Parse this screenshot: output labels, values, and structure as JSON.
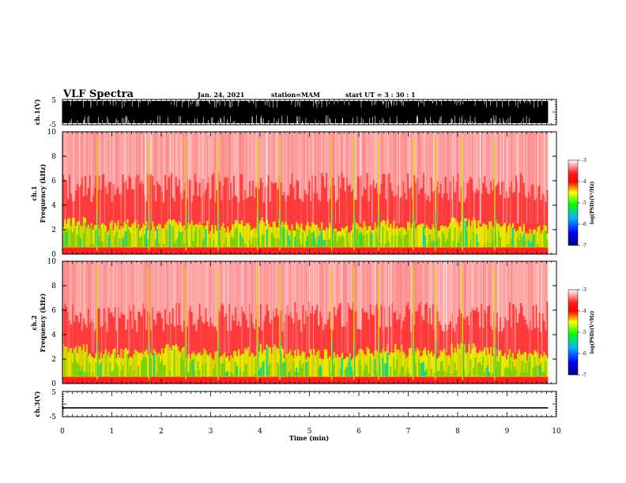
{
  "header": {
    "title": "VLF Spectra",
    "date": "Jan. 24, 2021",
    "station": "station=MAM",
    "start": "start UT =  3 : 30 : 1"
  },
  "chart_data": [
    {
      "type": "line",
      "name": "ch1_waveform",
      "ylabel": "ch.1(V)",
      "ylim": [
        -5,
        5
      ],
      "yticks": [
        "5",
        "-5"
      ],
      "xlim": [
        0,
        10
      ],
      "signal_end_min": 9.83
    },
    {
      "type": "heatmap",
      "name": "ch1_spectrogram",
      "ylabel_top": "ch.1",
      "ylabel": "Frequency (kHz)",
      "ylim": [
        0,
        10
      ],
      "yticks": [
        "0",
        "2",
        "4",
        "6",
        "8",
        "10"
      ],
      "xlim": [
        0,
        10
      ],
      "colorbar": {
        "label": "log(PSD)(V²/Hz)",
        "range": [
          -7,
          -3
        ],
        "ticks": [
          "-3",
          "-4",
          "-5",
          "-6",
          "-7"
        ],
        "colors": [
          "#000080",
          "#0000ff",
          "#00b4ff",
          "#00ff00",
          "#ffff00",
          "#ff0000",
          "#ffffff"
        ]
      },
      "band_top_khz": [
        2.6,
        2.2,
        2.4,
        2.3,
        2.5,
        2.3,
        2.1,
        2.4,
        2.6,
        2.3,
        2.2,
        2.1,
        2.4,
        2.5,
        2.3,
        2.2,
        2.6,
        2.4,
        2.2,
        2.1
      ],
      "spikes_min": [
        0.7,
        1.75,
        2.5,
        3.15,
        3.95,
        4.4,
        5.45,
        5.9,
        6.4,
        7.1,
        7.55,
        8.1,
        8.75
      ]
    },
    {
      "type": "heatmap",
      "name": "ch2_spectrogram",
      "ylabel_top": "ch.2",
      "ylabel": "Frequency (kHz)",
      "ylim": [
        0,
        10
      ],
      "yticks": [
        "0",
        "2",
        "4",
        "6",
        "8",
        "10"
      ],
      "xlim": [
        0,
        10
      ],
      "colorbar": {
        "label": "log(PSD)(V²/Hz)",
        "range": [
          -7,
          -3
        ],
        "ticks": [
          "-3",
          "-4",
          "-5",
          "-6",
          "-7"
        ],
        "colors": [
          "#000080",
          "#0000ff",
          "#00b4ff",
          "#00ff00",
          "#ffff00",
          "#ff0000",
          "#ffffff"
        ]
      },
      "band_top_khz": [
        2.9,
        2.4,
        2.5,
        2.6,
        2.8,
        2.5,
        2.3,
        2.6,
        2.9,
        2.5,
        2.4,
        2.3,
        2.6,
        2.8,
        2.5,
        2.4,
        2.9,
        2.6,
        2.4,
        2.3
      ],
      "spikes_min": [
        0.7,
        1.75,
        2.5,
        3.15,
        3.95,
        4.4,
        5.45,
        5.9,
        6.4,
        7.1,
        7.55,
        8.1,
        8.75
      ]
    },
    {
      "type": "line",
      "name": "ch3_waveform",
      "ylabel": "ch.3(V)",
      "ylim": [
        -5,
        5
      ],
      "yticks": [
        "5",
        "-5"
      ],
      "xlim": [
        0,
        10
      ],
      "constant_value": -1.5,
      "xlabel": "Time (min)",
      "xticks": [
        "0",
        "1",
        "2",
        "3",
        "4",
        "5",
        "6",
        "7",
        "8",
        "9",
        "10"
      ]
    }
  ]
}
